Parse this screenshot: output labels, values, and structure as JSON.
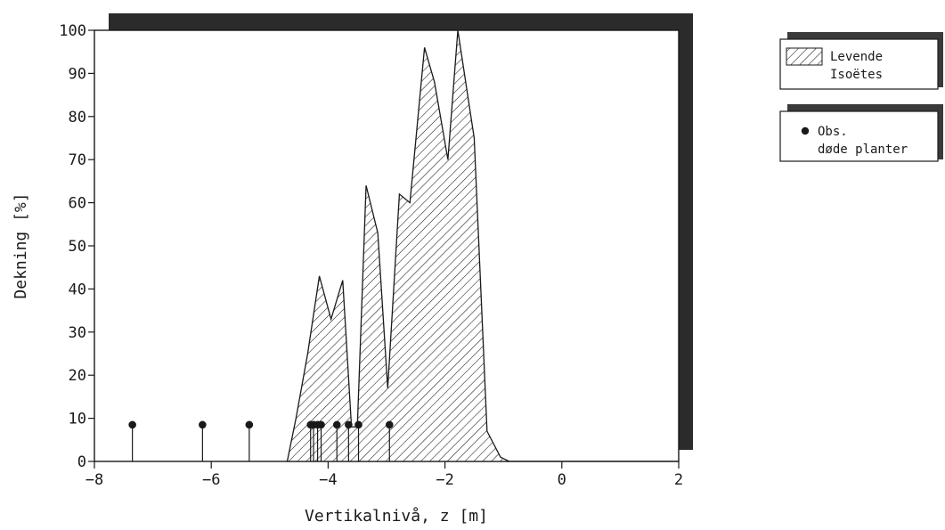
{
  "chart_data": {
    "type": "area",
    "title": "",
    "xlabel": "Vertikalnivå, z [m]",
    "ylabel": "Dekning [%]",
    "xlim": [
      -8,
      2
    ],
    "ylim": [
      0,
      100
    ],
    "x_ticks": [
      -8,
      -6,
      -4,
      -2,
      0,
      2
    ],
    "y_ticks": [
      0,
      10,
      20,
      30,
      40,
      50,
      60,
      70,
      80,
      90,
      100
    ],
    "grid": false,
    "legend_position": "right",
    "series": [
      {
        "name": "Levende Isoëtes",
        "style": "hatched-area",
        "x": [
          -4.7,
          -4.55,
          -4.35,
          -4.15,
          -3.95,
          -3.75,
          -3.6,
          -3.5,
          -3.35,
          -3.15,
          -2.98,
          -2.78,
          -2.6,
          -2.35,
          -2.18,
          -1.95,
          -1.78,
          -1.5,
          -1.28,
          -1.05,
          -0.9
        ],
        "y": [
          0,
          10,
          25,
          43,
          33,
          42,
          8,
          8,
          64,
          53,
          17,
          62,
          60,
          96,
          88,
          70,
          100,
          75,
          7,
          1,
          0
        ]
      },
      {
        "name": "Obs. døde planter",
        "style": "stem-markers",
        "x": [
          -7.35,
          -6.15,
          -5.35,
          -4.3,
          -4.25,
          -4.18,
          -4.12,
          -3.85,
          -3.65,
          -3.48,
          -2.95
        ],
        "y": [
          8.5,
          8.5,
          8.5,
          8.5,
          8.5,
          8.5,
          8.5,
          8.5,
          8.5,
          8.5,
          8.5
        ]
      }
    ],
    "legend": [
      {
        "label_line1": "Levende",
        "label_line2": "Isoëtes",
        "symbol": "hatch"
      },
      {
        "label_line1": "Obs.",
        "label_line2": "døde planter",
        "symbol": "dot"
      }
    ],
    "colors": {
      "ink": "#1a1a1a",
      "shadow": "#2b2b2b",
      "background": "#ffffff"
    }
  }
}
